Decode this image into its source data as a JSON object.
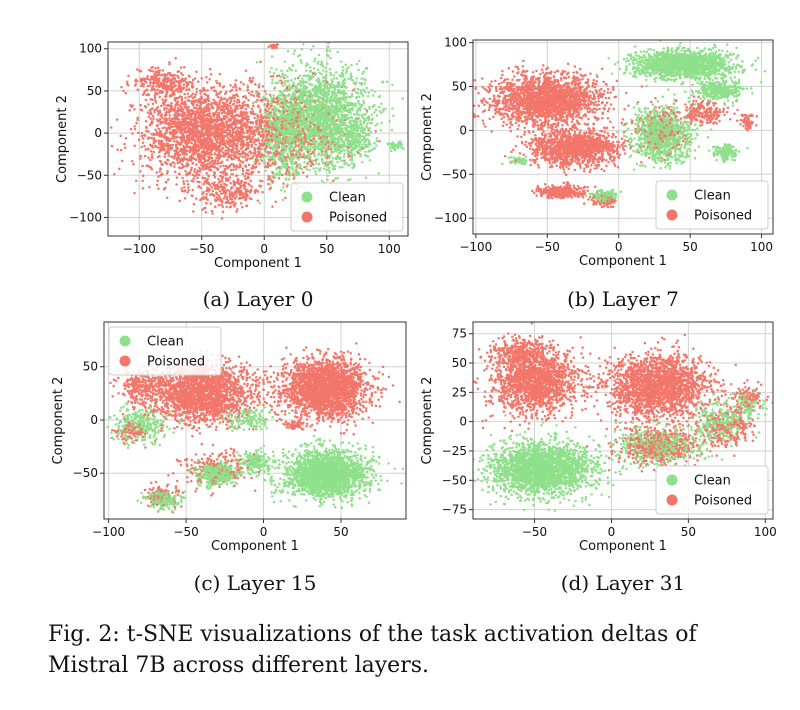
{
  "colors": {
    "clean": "#8fe08a",
    "poisoned": "#f2766a"
  },
  "figure_caption_lines": [
    "Fig. 2: t-SNE visualizations of the task activation deltas of",
    "Mistral 7B across different layers."
  ],
  "chart_data": [
    {
      "type": "scatter",
      "caption": "(a) Layer 0",
      "xlabel": "Component 1",
      "ylabel": "Component 2",
      "xlim": [
        -125,
        115
      ],
      "ylim": [
        -122,
        108
      ],
      "xticks": [
        -100,
        -50,
        0,
        50,
        100
      ],
      "yticks": [
        -100,
        -50,
        0,
        50,
        100
      ],
      "grid": true,
      "legend_position": "lower-right",
      "series": [
        {
          "name": "Clean",
          "clusters": [
            [
              45,
              20,
              35,
              55,
              6000
            ],
            [
              15,
              0,
              15,
              50,
              1500
            ],
            [
              70,
              0,
              15,
              25,
              700
            ],
            [
              105,
              -15,
              5,
              5,
              150
            ]
          ]
        },
        {
          "name": "Poisoned",
          "clusters": [
            [
              -50,
              0,
              45,
              50,
              6500
            ],
            [
              10,
              0,
              50,
              50,
              2500
            ],
            [
              -80,
              60,
              20,
              15,
              800
            ],
            [
              -30,
              -70,
              25,
              20,
              800
            ],
            [
              8,
              103,
              4,
              2,
              40
            ]
          ]
        }
      ]
    },
    {
      "type": "scatter",
      "caption": "(b) Layer 7",
      "xlabel": "Component 1",
      "ylabel": "Component 2",
      "xlim": [
        -102,
        108
      ],
      "ylim": [
        -118,
        103
      ],
      "xticks": [
        -100,
        -50,
        0,
        50,
        100
      ],
      "yticks": [
        -100,
        -50,
        0,
        50,
        100
      ],
      "grid": true,
      "legend_position": "lower-right",
      "series": [
        {
          "name": "Clean",
          "clusters": [
            [
              45,
              75,
              30,
              14,
              5000
            ],
            [
              70,
              45,
              15,
              10,
              1000
            ],
            [
              30,
              -5,
              18,
              28,
              3000
            ],
            [
              -10,
              -75,
              8,
              6,
              400
            ],
            [
              75,
              -25,
              8,
              8,
              500
            ],
            [
              -70,
              -35,
              6,
              4,
              150
            ]
          ]
        },
        {
          "name": "Poisoned",
          "clusters": [
            [
              -50,
              35,
              35,
              25,
              6000
            ],
            [
              -30,
              -20,
              28,
              18,
              4000
            ],
            [
              -40,
              -70,
              15,
              6,
              1000
            ],
            [
              60,
              20,
              15,
              12,
              600
            ],
            [
              30,
              0,
              15,
              25,
              800
            ],
            [
              -10,
              -80,
              10,
              6,
              300
            ],
            [
              90,
              10,
              5,
              8,
              200
            ]
          ]
        }
      ]
    },
    {
      "type": "scatter",
      "caption": "(c) Layer 15",
      "xlabel": "Component 1",
      "ylabel": "Component 2",
      "xlim": [
        -103,
        92
      ],
      "ylim": [
        -93,
        92
      ],
      "xticks": [
        -100,
        -50,
        0,
        50
      ],
      "yticks": [
        -50,
        0,
        50
      ],
      "grid": true,
      "legend_position": "upper-left",
      "series": [
        {
          "name": "Clean",
          "clusters": [
            [
              40,
              -50,
              25,
              20,
              6000
            ],
            [
              -30,
              -50,
              12,
              10,
              1200
            ],
            [
              -65,
              -75,
              10,
              8,
              600
            ],
            [
              -80,
              -5,
              15,
              15,
              800
            ],
            [
              -5,
              -40,
              10,
              10,
              500
            ],
            [
              -10,
              0,
              15,
              10,
              400
            ]
          ]
        },
        {
          "name": "Poisoned",
          "clusters": [
            [
              40,
              30,
              25,
              25,
              7000
            ],
            [
              -40,
              25,
              30,
              25,
              6000
            ],
            [
              -80,
              30,
              12,
              15,
              700
            ],
            [
              -30,
              -45,
              20,
              15,
              600
            ],
            [
              20,
              -5,
              5,
              4,
              150
            ],
            [
              -65,
              -70,
              12,
              10,
              300
            ],
            [
              -85,
              -10,
              10,
              10,
              300
            ]
          ]
        }
      ]
    },
    {
      "type": "scatter",
      "caption": "(d) Layer 31",
      "xlabel": "Component 1",
      "ylabel": "Component 2",
      "xlim": [
        -90,
        105
      ],
      "ylim": [
        -83,
        85
      ],
      "xticks": [
        -50,
        0,
        50,
        100
      ],
      "yticks": [
        -75,
        -50,
        -25,
        0,
        25,
        50,
        75
      ],
      "grid": true,
      "legend_position": "lower-right",
      "series": [
        {
          "name": "Clean",
          "clusters": [
            [
              -45,
              -40,
              30,
              20,
              7000
            ],
            [
              30,
              -20,
              25,
              15,
              1500
            ],
            [
              70,
              0,
              15,
              15,
              800
            ],
            [
              90,
              15,
              8,
              10,
              300
            ]
          ]
        },
        {
          "name": "Poisoned",
          "clusters": [
            [
              -50,
              35,
              25,
              25,
              5000
            ],
            [
              30,
              30,
              30,
              25,
              6000
            ],
            [
              30,
              -20,
              25,
              15,
              1500
            ],
            [
              75,
              -5,
              15,
              15,
              800
            ],
            [
              90,
              20,
              8,
              10,
              300
            ],
            [
              -60,
              60,
              15,
              10,
              800
            ]
          ]
        }
      ]
    }
  ]
}
